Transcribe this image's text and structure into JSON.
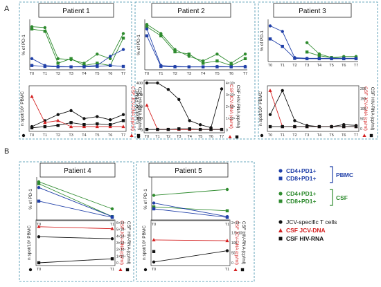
{
  "section_labels": [
    "A",
    "B"
  ],
  "titles": [
    "Patient 1",
    "Patient 2",
    "Patient 3",
    "Patient 4",
    "Patient 5"
  ],
  "axis_labels": {
    "pd1": "% of PD-1",
    "spots": "n spot/10⁶ PBMC",
    "jcv": "CSF JCV-DNA (cp/ml)",
    "hiv": "CSF HIV-RNA (cp/ml)"
  },
  "legend": {
    "pbmc_group": "PBMC",
    "csf_group": "CSF",
    "items": [
      {
        "label": "CD4+PD1+",
        "color": "#1f3fa8",
        "marker": "circle"
      },
      {
        "label": "CD8+PD1+",
        "color": "#1f3fa8",
        "marker": "square"
      },
      {
        "label": "CD4+PD1+",
        "color": "#2e8b2e",
        "marker": "circle"
      },
      {
        "label": "CD8+PD1+",
        "color": "#2e8b2e",
        "marker": "square"
      },
      {
        "label": "JCV-specific T cells",
        "color": "#111111",
        "marker": "circle"
      },
      {
        "label": "CSF JCV-DNA",
        "color": "#d42020",
        "marker": "triangle"
      },
      {
        "label": "CSF HIV-RNA",
        "color": "#111111",
        "marker": "square"
      }
    ]
  },
  "colors": {
    "pbmc": "#1f3fa8",
    "csf": "#2e8b2e",
    "jcv": "#d42020",
    "tcell": "#111111",
    "frame": "#3a8ca8"
  },
  "panels": [
    {
      "title": "Patient 1",
      "x_ticks": [
        "T0",
        "T1",
        "T2",
        "T3",
        "T4",
        "T5",
        "T6",
        "T7"
      ],
      "top": {
        "y_ticks": [],
        "series": [
          {
            "color": "#2e8b2e",
            "marker": "circle",
            "values": [
              90,
              88,
              20,
              18,
              10,
              30,
              20,
              75
            ]
          },
          {
            "color": "#2e8b2e",
            "marker": "square",
            "values": [
              85,
              80,
              10,
              20,
              5,
              10,
              5,
              65
            ]
          },
          {
            "color": "#1f3fa8",
            "marker": "circle",
            "values": [
              20,
              5,
              3,
              2,
              3,
              5,
              25,
              40
            ]
          },
          {
            "color": "#1f3fa8",
            "marker": "square",
            "values": [
              5,
              3,
              2,
              2,
              2,
              3,
              5,
              3
            ]
          }
        ]
      },
      "bottom": {
        "left_ticks": [],
        "right_ticks": [],
        "series": [
          {
            "color": "#111111",
            "marker": "circle",
            "values": [
              5,
              20,
              35,
              45,
              25,
              30,
              22,
              35
            ]
          },
          {
            "color": "#d42020",
            "marker": "triangle",
            "values": [
              80,
              15,
              20,
              5,
              5,
              5,
              5,
              5
            ]
          },
          {
            "color": "#111111",
            "marker": "square",
            "values": [
              2,
              5,
              8,
              15,
              10,
              12,
              10,
              20
            ]
          }
        ]
      }
    },
    {
      "title": "Patient 2",
      "x_ticks": [
        "T0",
        "T1",
        "T2",
        "T3",
        "T4",
        "T5",
        "T6",
        "T7"
      ],
      "top": {
        "y_ticks": [],
        "series": [
          {
            "color": "#2e8b2e",
            "marker": "circle",
            "values": [
              95,
              75,
              40,
              25,
              15,
              30,
              10,
              30
            ]
          },
          {
            "color": "#2e8b2e",
            "marker": "square",
            "values": [
              90,
              70,
              35,
              30,
              10,
              15,
              5,
              20
            ]
          },
          {
            "color": "#1f3fa8",
            "marker": "circle",
            "values": [
              85,
              5,
              3,
              2,
              2,
              3,
              2,
              3
            ]
          },
          {
            "color": "#1f3fa8",
            "marker": "square",
            "values": [
              70,
              3,
              2,
              2,
              2,
              2,
              2,
              2
            ]
          }
        ]
      },
      "bottom": {
        "left_ticks": [
          "0",
          "100",
          "200",
          "300",
          "400"
        ],
        "right_ticks": [
          "0",
          "1×10⁵",
          "2×10⁵",
          "3×10⁵",
          "4×10⁵"
        ],
        "series": [
          {
            "color": "#111111",
            "marker": "circle",
            "values": [
              400,
              400,
              345,
              260,
              80,
              45,
              20,
              350
            ]
          },
          {
            "color": "#d42020",
            "marker": "triangle",
            "values": [
              210,
              5,
              5,
              5,
              5,
              5,
              5,
              5
            ]
          },
          {
            "color": "#111111",
            "marker": "square",
            "values": [
              5,
              5,
              5,
              10,
              10,
              5,
              5,
              5
            ]
          }
        ]
      }
    },
    {
      "title": "Patient 3",
      "x_ticks": [
        "T0",
        "T1",
        "T2",
        "T3",
        "T4",
        "T5",
        "T6",
        "T7"
      ],
      "top": {
        "y_ticks": [],
        "series": [
          {
            "color": "#2e8b2e",
            "marker": "circle",
            "values": [
              null,
              null,
              null,
              45,
              15,
              5,
              8,
              8
            ]
          },
          {
            "color": "#2e8b2e",
            "marker": "square",
            "values": [
              null,
              null,
              null,
              20,
              10,
              5,
              3,
              3
            ]
          },
          {
            "color": "#1f3fa8",
            "marker": "circle",
            "values": [
              90,
              75,
              5,
              3,
              3,
              3,
              3,
              3
            ]
          },
          {
            "color": "#1f3fa8",
            "marker": "square",
            "values": [
              55,
              35,
              3,
              2,
              2,
              2,
              2,
              2
            ]
          }
        ]
      },
      "bottom": {
        "left_ticks": [],
        "right_ticks": [
          "0",
          "50",
          "100",
          "150",
          "200"
        ],
        "series": [
          {
            "color": "#111111",
            "marker": "circle",
            "values": [
              35,
              95,
              20,
              8,
              5,
              5,
              10,
              8
            ]
          },
          {
            "color": "#d42020",
            "marker": "triangle",
            "values": [
              95,
              5,
              5,
              5,
              5,
              5,
              5,
              5
            ]
          },
          {
            "color": "#111111",
            "marker": "square",
            "values": [
              5,
              5,
              5,
              5,
              5,
              5,
              5,
              5
            ]
          }
        ]
      }
    },
    {
      "title": "Patient 4",
      "x_ticks": [
        "T0",
        "T1"
      ],
      "top": {
        "y_ticks": [],
        "series": [
          {
            "color": "#2e8b2e",
            "marker": "circle",
            "values": [
              95,
              25
            ]
          },
          {
            "color": "#2e8b2e",
            "marker": "square",
            "values": [
              90,
              5
            ]
          },
          {
            "color": "#1f3fa8",
            "marker": "circle",
            "values": [
              80,
              5
            ]
          },
          {
            "color": "#1f3fa8",
            "marker": "square",
            "values": [
              45,
              3
            ]
          }
        ]
      },
      "bottom": {
        "left_ticks": [],
        "right_ticks": [
          "0",
          "1×10⁴",
          "2×10⁴",
          "3×10⁴",
          "4×10⁴",
          "5×10⁴",
          "6×10⁴"
        ],
        "series": [
          {
            "color": "#111111",
            "marker": "circle",
            "values": [
              65,
              60
            ]
          },
          {
            "color": "#d42020",
            "marker": "triangle",
            "values": [
              90,
              85
            ]
          },
          {
            "color": "#111111",
            "marker": "square",
            "values": [
              0,
              10
            ]
          }
        ]
      }
    },
    {
      "title": "Patient 5",
      "x_ticks": [
        "T0",
        "T1"
      ],
      "top": {
        "y_ticks": [],
        "series": [
          {
            "color": "#2e8b2e",
            "marker": "circle",
            "values": [
              60,
              75
            ]
          },
          {
            "color": "#2e8b2e",
            "marker": "square",
            "values": [
              30,
              20
            ]
          },
          {
            "color": "#1f3fa8",
            "marker": "circle",
            "values": [
              40,
              5
            ]
          },
          {
            "color": "#1f3fa8",
            "marker": "square",
            "values": [
              25,
              3
            ]
          }
        ]
      },
      "bottom": {
        "left_ticks": [],
        "right_ticks": [
          "0",
          "50",
          "100",
          "1.5×10⁵",
          "2×10⁵"
        ],
        "series": [
          {
            "color": "#111111",
            "marker": "circle",
            "values": [
              2,
              30
            ]
          },
          {
            "color": "#d42020",
            "marker": "triangle",
            "values": [
              57,
              55
            ]
          },
          {
            "color": "#111111",
            "marker": "square",
            "values": [
              28,
              null
            ]
          }
        ]
      }
    }
  ],
  "chart_data": [
    {
      "type": "line",
      "title": "Patient 1",
      "x": [
        "T0",
        "T1",
        "T2",
        "T3",
        "T4",
        "T5",
        "T6",
        "T7"
      ],
      "ylabel": "% of PD-1",
      "series": [
        {
          "name": "CD4+PD1+ (CSF)",
          "values": [
            90,
            88,
            20,
            18,
            10,
            30,
            20,
            75
          ]
        },
        {
          "name": "CD8+PD1+ (CSF)",
          "values": [
            85,
            80,
            10,
            20,
            5,
            10,
            5,
            65
          ]
        },
        {
          "name": "CD4+PD1+ (PBMC)",
          "values": [
            20,
            5,
            3,
            2,
            3,
            5,
            25,
            40
          ]
        },
        {
          "name": "CD8+PD1+ (PBMC)",
          "values": [
            5,
            3,
            2,
            2,
            2,
            3,
            5,
            3
          ]
        }
      ]
    },
    {
      "type": "line",
      "title": "Patient 1",
      "x": [
        "T0",
        "T1",
        "T2",
        "T3",
        "T4",
        "T5",
        "T6",
        "T7"
      ],
      "ylabel": "n spot/10⁶ PBMC",
      "series": [
        {
          "name": "JCV-specific T cells",
          "values": [
            5,
            20,
            35,
            45,
            25,
            30,
            22,
            35
          ]
        },
        {
          "name": "CSF JCV-DNA",
          "values": [
            80,
            15,
            20,
            5,
            5,
            5,
            5,
            5
          ]
        },
        {
          "name": "CSF HIV-RNA",
          "values": [
            2,
            5,
            8,
            15,
            10,
            12,
            10,
            20
          ]
        }
      ]
    },
    {
      "type": "line",
      "title": "Patient 2",
      "x": [
        "T0",
        "T1",
        "T2",
        "T3",
        "T4",
        "T5",
        "T6",
        "T7"
      ],
      "ylabel": "% of PD-1",
      "series": [
        {
          "name": "CD4+PD1+ (CSF)",
          "values": [
            95,
            75,
            40,
            25,
            15,
            30,
            10,
            30
          ]
        },
        {
          "name": "CD8+PD1+ (CSF)",
          "values": [
            90,
            70,
            35,
            30,
            10,
            15,
            5,
            20
          ]
        },
        {
          "name": "CD4+PD1+ (PBMC)",
          "values": [
            85,
            5,
            3,
            2,
            2,
            3,
            2,
            3
          ]
        },
        {
          "name": "CD8+PD1+ (PBMC)",
          "values": [
            70,
            3,
            2,
            2,
            2,
            2,
            2,
            2
          ]
        }
      ]
    },
    {
      "type": "line",
      "title": "Patient 2",
      "x": [
        "T0",
        "T1",
        "T2",
        "T3",
        "T4",
        "T5",
        "T6",
        "T7"
      ],
      "ylabel": "n spot/10⁶ PBMC",
      "ylim": [
        0,
        400
      ],
      "series": [
        {
          "name": "JCV-specific T cells",
          "values": [
            400,
            400,
            345,
            260,
            80,
            45,
            20,
            350
          ]
        },
        {
          "name": "CSF JCV-DNA",
          "values": [
            210,
            5,
            5,
            5,
            5,
            5,
            5,
            5
          ]
        },
        {
          "name": "CSF HIV-RNA",
          "values": [
            5,
            5,
            5,
            10,
            10,
            5,
            5,
            5
          ]
        }
      ]
    },
    {
      "type": "line",
      "title": "Patient 3",
      "x": [
        "T0",
        "T1",
        "T2",
        "T3",
        "T4",
        "T5",
        "T6",
        "T7"
      ],
      "ylabel": "% of PD-1",
      "series": [
        {
          "name": "CD4+PD1+ (CSF)",
          "values": [
            null,
            null,
            null,
            45,
            15,
            5,
            8,
            8
          ]
        },
        {
          "name": "CD8+PD1+ (CSF)",
          "values": [
            null,
            null,
            null,
            20,
            10,
            5,
            3,
            3
          ]
        },
        {
          "name": "CD4+PD1+ (PBMC)",
          "values": [
            90,
            75,
            5,
            3,
            3,
            3,
            3,
            3
          ]
        },
        {
          "name": "CD8+PD1+ (PBMC)",
          "values": [
            55,
            35,
            3,
            2,
            2,
            2,
            2,
            2
          ]
        }
      ]
    },
    {
      "type": "line",
      "title": "Patient 3",
      "x": [
        "T0",
        "T1",
        "T2",
        "T3",
        "T4",
        "T5",
        "T6",
        "T7"
      ],
      "ylabel": "n spot/10⁶ PBMC",
      "series": [
        {
          "name": "JCV-specific T cells",
          "values": [
            35,
            95,
            20,
            8,
            5,
            5,
            10,
            8
          ]
        },
        {
          "name": "CSF JCV-DNA",
          "values": [
            95,
            5,
            5,
            5,
            5,
            5,
            5,
            5
          ]
        },
        {
          "name": "CSF HIV-RNA",
          "values": [
            5,
            5,
            5,
            5,
            5,
            5,
            5,
            5
          ]
        }
      ]
    },
    {
      "type": "line",
      "title": "Patient 4",
      "x": [
        "T0",
        "T1"
      ],
      "ylabel": "% of PD-1",
      "series": [
        {
          "name": "CD4+PD1+ (CSF)",
          "values": [
            95,
            25
          ]
        },
        {
          "name": "CD8+PD1+ (CSF)",
          "values": [
            90,
            5
          ]
        },
        {
          "name": "CD4+PD1+ (PBMC)",
          "values": [
            80,
            5
          ]
        },
        {
          "name": "CD8+PD1+ (PBMC)",
          "values": [
            45,
            3
          ]
        }
      ]
    },
    {
      "type": "line",
      "title": "Patient 4",
      "x": [
        "T0",
        "T1"
      ],
      "ylabel": "n spot/10⁶ PBMC",
      "series": [
        {
          "name": "JCV-specific T cells",
          "values": [
            65,
            60
          ]
        },
        {
          "name": "CSF JCV-DNA",
          "values": [
            90,
            85
          ]
        },
        {
          "name": "CSF HIV-RNA",
          "values": [
            0,
            10
          ]
        }
      ]
    },
    {
      "type": "line",
      "title": "Patient 5",
      "x": [
        "T0",
        "T1"
      ],
      "ylabel": "% of PD-1",
      "series": [
        {
          "name": "CD4+PD1+ (CSF)",
          "values": [
            60,
            75
          ]
        },
        {
          "name": "CD8+PD1+ (CSF)",
          "values": [
            30,
            20
          ]
        },
        {
          "name": "CD4+PD1+ (PBMC)",
          "values": [
            40,
            5
          ]
        },
        {
          "name": "CD8+PD1+ (PBMC)",
          "values": [
            25,
            3
          ]
        }
      ]
    },
    {
      "type": "line",
      "title": "Patient 5",
      "x": [
        "T0",
        "T1"
      ],
      "ylabel": "n spot/10⁶ PBMC",
      "series": [
        {
          "name": "JCV-specific T cells",
          "values": [
            2,
            30
          ]
        },
        {
          "name": "CSF JCV-DNA",
          "values": [
            57,
            55
          ]
        },
        {
          "name": "CSF HIV-RNA",
          "values": [
            28,
            null
          ]
        }
      ]
    }
  ]
}
